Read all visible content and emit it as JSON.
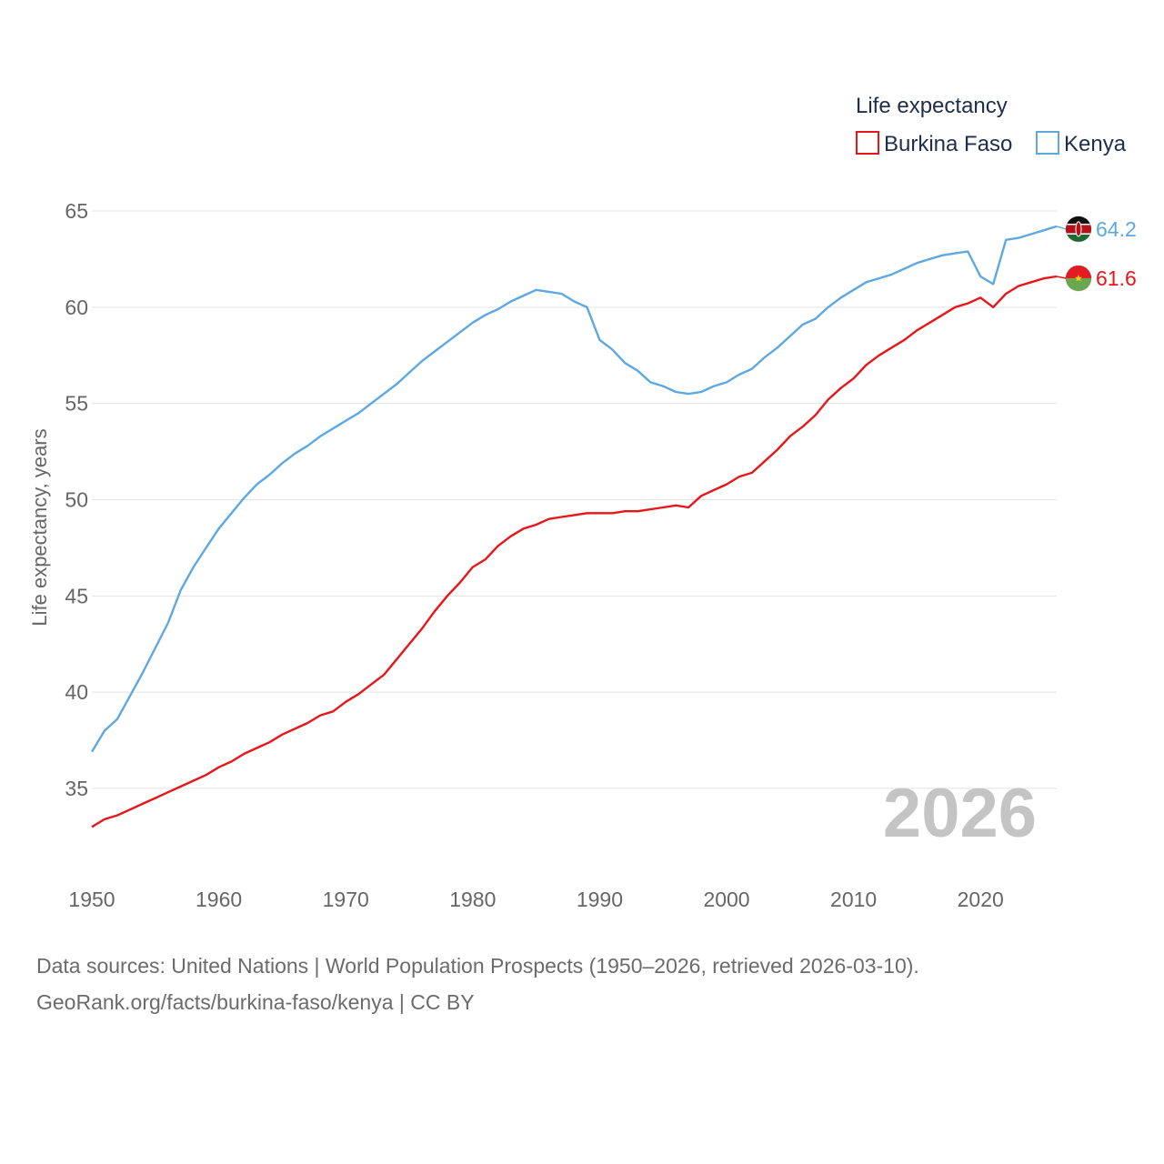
{
  "chart_data": {
    "type": "line",
    "title": "",
    "legend_title": "Life expectancy",
    "ylabel": "Life expectancy, years",
    "xlabel": "",
    "year_stamp": "2026",
    "xlim": [
      1950,
      2026
    ],
    "ylim": [
      32,
      67
    ],
    "x_ticks": [
      1950,
      1960,
      1970,
      1980,
      1990,
      2000,
      2010,
      2020
    ],
    "y_ticks": [
      35,
      40,
      45,
      50,
      55,
      60,
      65
    ],
    "legend_placement": "top-right",
    "x": [
      1950,
      1951,
      1952,
      1953,
      1954,
      1955,
      1956,
      1957,
      1958,
      1959,
      1960,
      1961,
      1962,
      1963,
      1964,
      1965,
      1966,
      1967,
      1968,
      1969,
      1970,
      1971,
      1972,
      1973,
      1974,
      1975,
      1976,
      1977,
      1978,
      1979,
      1980,
      1981,
      1982,
      1983,
      1984,
      1985,
      1986,
      1987,
      1988,
      1989,
      1990,
      1991,
      1992,
      1993,
      1994,
      1995,
      1996,
      1997,
      1998,
      1999,
      2000,
      2001,
      2002,
      2003,
      2004,
      2005,
      2006,
      2007,
      2008,
      2009,
      2010,
      2011,
      2012,
      2013,
      2014,
      2015,
      2016,
      2017,
      2018,
      2019,
      2020,
      2021,
      2022,
      2023,
      2024,
      2025,
      2026
    ],
    "series": [
      {
        "name": "Burkina Faso",
        "color": "#e8161b",
        "end_label": "61.6",
        "flag": "burkina-faso-flag",
        "values": [
          33.0,
          33.4,
          33.6,
          33.9,
          34.2,
          34.5,
          34.8,
          35.1,
          35.4,
          35.7,
          36.1,
          36.4,
          36.8,
          37.1,
          37.4,
          37.8,
          38.1,
          38.4,
          38.8,
          39.0,
          39.5,
          39.9,
          40.4,
          40.9,
          41.7,
          42.5,
          43.3,
          44.2,
          45.0,
          45.7,
          46.5,
          46.9,
          47.6,
          48.1,
          48.5,
          48.7,
          49.0,
          49.1,
          49.2,
          49.3,
          49.3,
          49.3,
          49.4,
          49.4,
          49.5,
          49.6,
          49.7,
          49.6,
          50.2,
          50.5,
          50.8,
          51.2,
          51.4,
          52.0,
          52.6,
          53.3,
          53.8,
          54.4,
          55.2,
          55.8,
          56.3,
          57.0,
          57.5,
          57.9,
          58.3,
          58.8,
          59.2,
          59.6,
          60.0,
          60.2,
          60.5,
          60.0,
          60.7,
          61.1,
          61.3,
          61.5,
          61.6
        ]
      },
      {
        "name": "Kenya",
        "color": "#5ea8e2",
        "end_label": "64.2",
        "flag": "kenya-flag",
        "values": [
          36.9,
          38.0,
          38.6,
          39.8,
          41.0,
          42.3,
          43.6,
          45.3,
          46.5,
          47.5,
          48.5,
          49.3,
          50.1,
          50.8,
          51.3,
          51.9,
          52.4,
          52.8,
          53.3,
          53.7,
          54.1,
          54.5,
          55.0,
          55.5,
          56.0,
          56.6,
          57.2,
          57.7,
          58.2,
          58.7,
          59.2,
          59.6,
          59.9,
          60.3,
          60.6,
          60.9,
          60.8,
          60.7,
          60.3,
          60.0,
          58.3,
          57.8,
          57.1,
          56.7,
          56.1,
          55.9,
          55.6,
          55.5,
          55.6,
          55.9,
          56.1,
          56.5,
          56.8,
          57.4,
          57.9,
          58.5,
          59.1,
          59.4,
          60.0,
          60.5,
          60.9,
          61.3,
          61.5,
          61.7,
          62.0,
          62.3,
          62.5,
          62.7,
          62.8,
          62.9,
          61.6,
          61.2,
          63.5,
          63.6,
          63.8,
          64.0,
          64.2
        ]
      }
    ]
  },
  "source": {
    "line1": "Data sources: United Nations | World Population Prospects (1950–2026, retrieved 2026-03-10).",
    "line2": "GeoRank.org/facts/burkina-faso/kenya | CC BY"
  }
}
